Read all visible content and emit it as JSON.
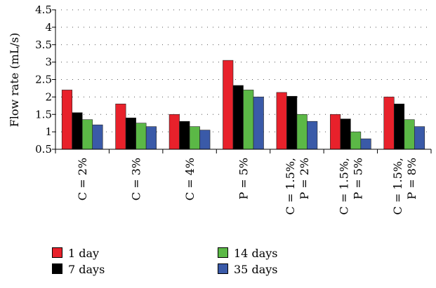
{
  "chart_data": {
    "type": "bar",
    "title": "",
    "xlabel": "",
    "ylabel": "Flow rate (mL/s)",
    "ylim": [
      0.5,
      4.5
    ],
    "yticks": [
      "0.5",
      "1",
      "1.5",
      "2",
      "2.5",
      "3",
      "3.5",
      "4",
      "4.5"
    ],
    "grid": "dotted horizontal",
    "legend_position": "bottom",
    "categories": [
      [
        "C = 2%"
      ],
      [
        "C = 3%"
      ],
      [
        "C = 4%"
      ],
      [
        "P = 5%"
      ],
      [
        "C = 1.5%,",
        "P = 2%"
      ],
      [
        "C = 1.5%,",
        "P = 5%"
      ],
      [
        "C = 1.5%,",
        "P = 8%"
      ]
    ],
    "series": [
      {
        "name": "1 day",
        "color": "#e8212b",
        "values": [
          2.2,
          1.8,
          1.5,
          3.05,
          2.13,
          1.5,
          2.0
        ]
      },
      {
        "name": "7 days",
        "color": "#000000",
        "values": [
          1.55,
          1.4,
          1.3,
          2.33,
          2.02,
          1.37,
          1.8
        ]
      },
      {
        "name": "14 days",
        "color": "#5bb846",
        "values": [
          1.35,
          1.25,
          1.15,
          2.2,
          1.5,
          1.0,
          1.35
        ]
      },
      {
        "name": "35 days",
        "color": "#3a5aa8",
        "values": [
          1.2,
          1.15,
          1.05,
          2.0,
          1.3,
          0.8,
          1.15
        ]
      }
    ]
  }
}
